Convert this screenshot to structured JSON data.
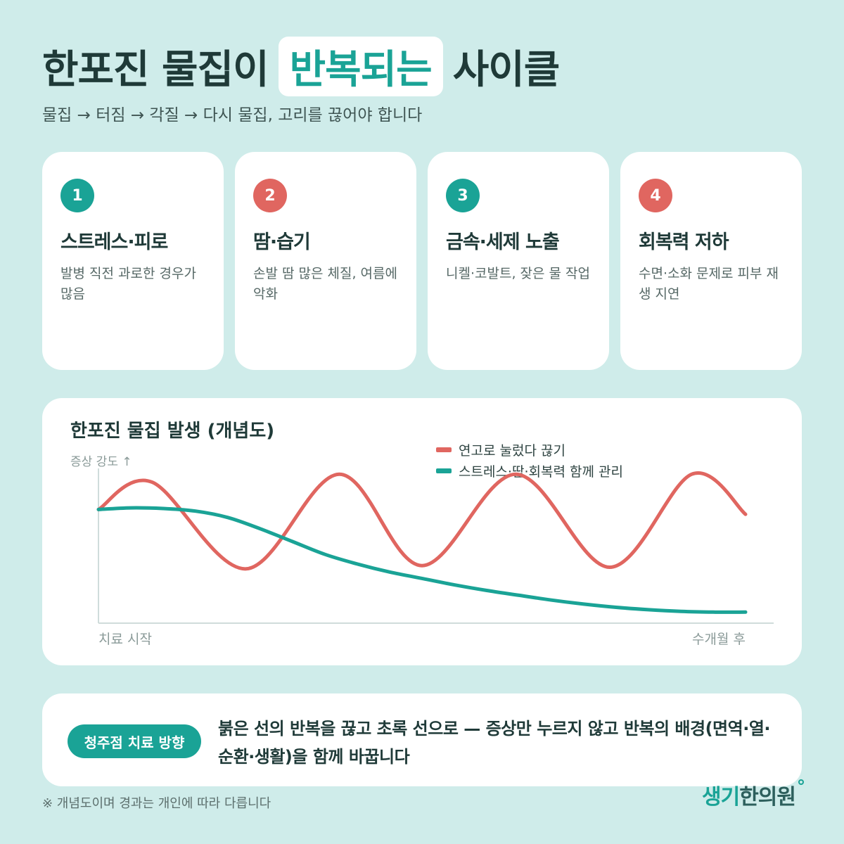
{
  "header": {
    "title_before": "한포진 물집이",
    "title_highlight": "반복되는",
    "title_after": "사이클",
    "subtitle": "물집 → 터짐 → 각질 → 다시 물집, 고리를 끊어야 합니다"
  },
  "cards": [
    {
      "num": "1",
      "title": "스트레스·피로",
      "desc": "발병 직전 과로한 경우가 많음"
    },
    {
      "num": "2",
      "title": "땀·습기",
      "desc": "손발 땀 많은 체질, 여름에 악화"
    },
    {
      "num": "3",
      "title": "금속·세제 노출",
      "desc": "니켈·코발트, 잦은 물 작업"
    },
    {
      "num": "4",
      "title": "회복력 저하",
      "desc": "수면·소화 문제로 피부 재생 지연"
    }
  ],
  "colors": {
    "teal": "#1aa396",
    "red": "#e06660",
    "background": "#cfecea"
  },
  "chart_data": {
    "type": "line",
    "title": "한포진 물집 발생 (개념도)",
    "ylabel": "증상 강도 ↑",
    "x_start_label": "치료 시작",
    "x_end_label": "수개월 후",
    "x_range": [
      0,
      100
    ],
    "ylim": [
      0,
      100
    ],
    "series": [
      {
        "name": "연고로 눌렀다 끊기",
        "color": "#e06660",
        "x": [
          0,
          8.3,
          22.8,
          37.2,
          50,
          64.5,
          79,
          91.7,
          100
        ],
        "y": [
          70,
          87,
          33,
          92,
          35,
          92,
          34,
          92,
          67
        ]
      },
      {
        "name": "스트레스·땀·회복력 함께 관리",
        "color": "#1aa396",
        "x": [
          0,
          5,
          10,
          15,
          20,
          25,
          30,
          35,
          40,
          45,
          50,
          55,
          60,
          65,
          70,
          75,
          80,
          85,
          90,
          95,
          100
        ],
        "y": [
          70,
          71,
          70.6,
          69,
          65,
          58,
          50,
          42,
          36,
          31,
          27,
          23,
          19.5,
          16.5,
          13.5,
          11,
          9,
          7.5,
          6.5,
          6,
          6
        ]
      }
    ]
  },
  "bottom": {
    "badge": "청주점 치료 방향",
    "text": "붉은 선의 반복을 끊고 초록 선으로 — 증상만 누르지 않고 반복의 배경(면역·열·순환·생활)을 함께 바꿉니다"
  },
  "footnote": "※ 개념도이며 경과는 개인에 따라 다릅니다",
  "logo": {
    "part1": "생기",
    "part2": "한의원"
  }
}
